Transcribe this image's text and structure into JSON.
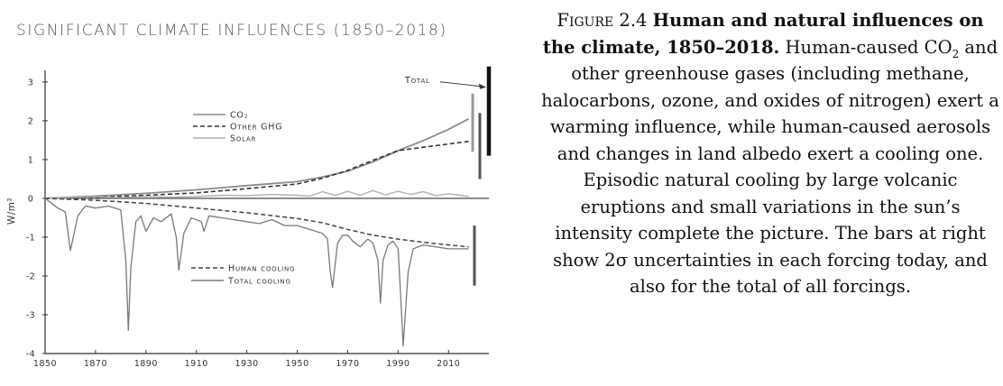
{
  "caption": {
    "figure_label": "Figure 2.4",
    "title": "Human and natural influences on the climate, 1850–2018.",
    "body_part1": "Human-caused CO",
    "body_sub": "2",
    "body_part2": " and other greenhouse gases (including methane, halocarbons, ozone, and oxides of nitrogen) exert a warming influence, while human-caused aerosols and changes in land albedo exert a cooling one. Episodic natural cooling by large volcanic eruptions and small variations in the sun’s intensity complete the picture. The bars at right show 2σ uncertainties in each forcing today, and also for the total of all forcings."
  },
  "colors": {
    "axis": "#333333",
    "co2": "#8c8c8c",
    "other_ghg": "#333333",
    "solar": "#b0b0b0",
    "human_cooling": "#444444",
    "total_cooling": "#7a7a7a",
    "bar_dark": "#111111",
    "bar_mid": "#555555",
    "bar_light": "#999999"
  },
  "chart_data": {
    "type": "line",
    "title": "Significant climate influences (1850–2018)",
    "ylabel": "W/m²",
    "xlabel": "",
    "xlim": [
      1850,
      2026
    ],
    "ylim": [
      -4,
      3.3
    ],
    "x_ticks": [
      1850,
      1870,
      1890,
      1910,
      1930,
      1950,
      1970,
      1990,
      2010
    ],
    "y_ticks": [
      3,
      2,
      1,
      0,
      -1,
      -2,
      -3,
      -4
    ],
    "series": [
      {
        "key": "co2",
        "name": "CO₂",
        "style": "solid",
        "x": [
          1850,
          1870,
          1890,
          1910,
          1930,
          1950,
          1960,
          1970,
          1980,
          1990,
          2000,
          2010,
          2018
        ],
        "y": [
          0.0,
          0.06,
          0.13,
          0.22,
          0.33,
          0.43,
          0.55,
          0.7,
          0.94,
          1.23,
          1.49,
          1.78,
          2.05
        ]
      },
      {
        "key": "other_ghg",
        "name": "Other GHG",
        "style": "dashed",
        "x": [
          1850,
          1870,
          1890,
          1910,
          1930,
          1950,
          1960,
          1970,
          1980,
          1990,
          2000,
          2010,
          2018
        ],
        "y": [
          0.0,
          0.03,
          0.08,
          0.14,
          0.25,
          0.37,
          0.52,
          0.72,
          0.98,
          1.23,
          1.32,
          1.4,
          1.47
        ]
      },
      {
        "key": "solar",
        "name": "Solar",
        "style": "solid",
        "x": [
          1850,
          1860,
          1870,
          1880,
          1890,
          1900,
          1910,
          1920,
          1930,
          1940,
          1950,
          1955,
          1960,
          1965,
          1970,
          1975,
          1980,
          1985,
          1990,
          1995,
          2000,
          2005,
          2010,
          2018
        ],
        "y": [
          0.0,
          0.02,
          0.04,
          0.02,
          0.05,
          0.03,
          0.05,
          0.08,
          0.07,
          0.1,
          0.08,
          0.06,
          0.17,
          0.08,
          0.18,
          0.08,
          0.2,
          0.09,
          0.18,
          0.1,
          0.17,
          0.07,
          0.12,
          0.05
        ]
      },
      {
        "key": "human_cooling",
        "name": "Human cooling",
        "style": "dashed",
        "x": [
          1850,
          1870,
          1890,
          1910,
          1930,
          1950,
          1960,
          1970,
          1980,
          1990,
          2000,
          2010,
          2018
        ],
        "y": [
          0.0,
          -0.05,
          -0.13,
          -0.25,
          -0.37,
          -0.52,
          -0.63,
          -0.8,
          -0.95,
          -1.05,
          -1.13,
          -1.2,
          -1.25
        ]
      },
      {
        "key": "total_cooling",
        "name": "Total cooling",
        "style": "solid",
        "x": [
          1850,
          1855,
          1858,
          1860,
          1863,
          1866,
          1870,
          1875,
          1880,
          1882,
          1883,
          1884,
          1886,
          1888,
          1890,
          1893,
          1896,
          1900,
          1902,
          1903,
          1905,
          1908,
          1912,
          1913,
          1915,
          1920,
          1925,
          1930,
          1935,
          1940,
          1945,
          1950,
          1955,
          1960,
          1962,
          1963,
          1964,
          1966,
          1968,
          1970,
          1972,
          1975,
          1978,
          1980,
          1982,
          1983,
          1984,
          1986,
          1988,
          1990,
          1991,
          1992,
          1994,
          1996,
          2000,
          2005,
          2010,
          2018
        ],
        "y": [
          0.0,
          -0.25,
          -0.35,
          -1.35,
          -0.45,
          -0.2,
          -0.25,
          -0.2,
          -0.3,
          -1.6,
          -3.4,
          -1.8,
          -0.6,
          -0.45,
          -0.85,
          -0.5,
          -0.6,
          -0.4,
          -1.0,
          -1.85,
          -0.9,
          -0.5,
          -0.6,
          -0.85,
          -0.45,
          -0.5,
          -0.55,
          -0.6,
          -0.65,
          -0.55,
          -0.7,
          -0.7,
          -0.8,
          -0.9,
          -1.05,
          -1.85,
          -2.3,
          -1.15,
          -0.95,
          -0.95,
          -1.1,
          -1.25,
          -1.05,
          -1.15,
          -1.6,
          -2.7,
          -1.6,
          -1.2,
          -1.1,
          -1.3,
          -2.5,
          -3.8,
          -1.9,
          -1.3,
          -1.2,
          -1.25,
          -1.3,
          -1.3
        ]
      }
    ],
    "annotations": [
      {
        "key": "total",
        "text": "Total",
        "x": 1985,
        "y": 3.05
      }
    ],
    "uncertainty_bars": [
      {
        "key": "total",
        "center": 2.4,
        "low": 1.1,
        "high": 3.4
      },
      {
        "key": "co2",
        "center": 2.05,
        "low": 1.2,
        "high": 2.7
      },
      {
        "key": "other_ghg",
        "center": 1.45,
        "low": 0.5,
        "high": 2.2
      },
      {
        "key": "human_cooling",
        "center": -1.25,
        "low": -2.25,
        "high": -0.7
      }
    ]
  }
}
